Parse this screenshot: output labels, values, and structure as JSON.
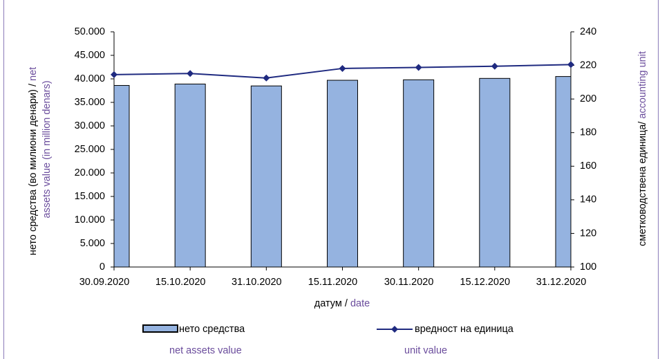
{
  "chart_data": {
    "type": "bar",
    "categories": [
      "30.09.2020",
      "15.10.2020",
      "31.10.2020",
      "15.11.2020",
      "30.11.2020",
      "15.12.2020",
      "31.12.2020"
    ],
    "series": [
      {
        "name": "нето средства",
        "name_en": "net assets value",
        "color": "#95b3e0",
        "values": [
          38600,
          38900,
          38500,
          39700,
          39800,
          40100,
          40500
        ]
      },
      {
        "name": "вредност на единица",
        "name_en": "unit value",
        "color": "#1f2a80",
        "type": "line",
        "axis": "y2",
        "values": [
          214.5,
          215.2,
          212.5,
          218.2,
          218.8,
          219.5,
          220.5
        ]
      }
    ],
    "ylim": [
      0,
      50000
    ],
    "yticks": [
      {
        "value": 0,
        "label": "0"
      },
      {
        "value": 5000,
        "label": "5.000"
      },
      {
        "value": 10000,
        "label": "10.000"
      },
      {
        "value": 15000,
        "label": "15.000"
      },
      {
        "value": 20000,
        "label": "20.000"
      },
      {
        "value": 25000,
        "label": "25.000"
      },
      {
        "value": 30000,
        "label": "30.000"
      },
      {
        "value": 35000,
        "label": "35.000"
      },
      {
        "value": 40000,
        "label": "40.000"
      },
      {
        "value": 45000,
        "label": "45.000"
      },
      {
        "value": 50000,
        "label": "50.000"
      }
    ],
    "y2lim": [
      100,
      240
    ],
    "y2ticks": [
      100,
      120,
      140,
      160,
      180,
      200,
      220,
      240
    ],
    "ylabel": {
      "mk": "нето средства (во милиони денари) / ",
      "en_line1": "net",
      "en_line2": "assets value (in million denars)"
    },
    "y2label": {
      "mk": "сметководствена единица/ ",
      "en": "accounting unit"
    },
    "xlabel": {
      "mk": "датум / ",
      "en": "date"
    },
    "grid": false
  }
}
